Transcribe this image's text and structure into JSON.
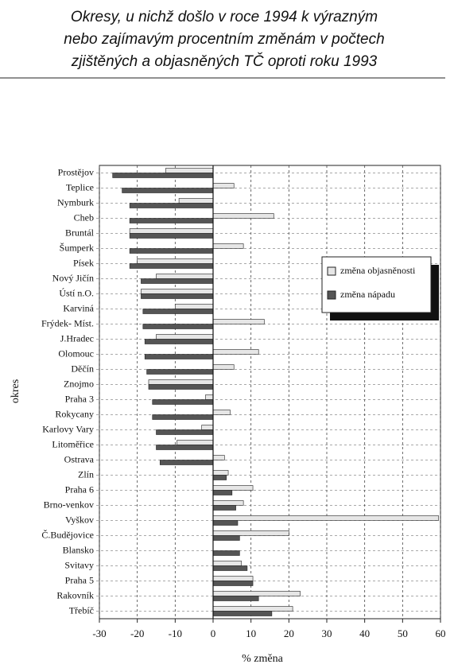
{
  "chart_data": {
    "type": "hbar",
    "title": [
      "Okresy, u nichž došlo v roce 1994 k výrazným",
      "nebo zajímavým procentním změnám v počtech",
      "zjištěných a objasněných TČ oproti roku 1993"
    ],
    "x_label": "% změna",
    "y_label": "okres",
    "categories": [
      "Prostějov",
      "Teplice",
      "Nymburk",
      "Cheb",
      "Bruntál",
      "Šumperk",
      "Písek",
      "Nový Jičín",
      "Ústí n.O.",
      "Karviná",
      "Frýdek- Míst.",
      "J.Hradec",
      "Olomouc",
      "Děčín",
      "Znojmo",
      "Praha 3",
      "Rokycany",
      "Karlovy Vary",
      "Litoměřice",
      "Ostrava",
      "Zlín",
      "Praha 6",
      "Brno-venkov",
      "Vyškov",
      "Č.Budějovice",
      "Blansko",
      "Svitavy",
      "Praha 5",
      "Rakovník",
      "Třebíč"
    ],
    "series": [
      {
        "name": "změna objasněnosti",
        "color": "#e6e6e6",
        "values": [
          -12.5,
          5.5,
          -9,
          16,
          -22,
          8,
          -20,
          -15,
          -19,
          -10,
          13.5,
          -15,
          12,
          5.5,
          -17,
          -2,
          4.5,
          -3,
          -9.5,
          3,
          4,
          10.5,
          8,
          59.5,
          20,
          0,
          7.5,
          10.5,
          23,
          21
        ]
      },
      {
        "name": "změna nápadu",
        "color": "#555555",
        "values": [
          -26.5,
          -24,
          -22,
          -22,
          -22,
          -22,
          -22,
          -19,
          -19,
          -18.5,
          -18.5,
          -18,
          -18,
          -17.5,
          -17,
          -16,
          -16,
          -15,
          -15,
          -14,
          3.5,
          5,
          6,
          6.5,
          7,
          7,
          9,
          10.5,
          12,
          15.5
        ]
      }
    ],
    "xlim": [
      -30,
      60
    ],
    "xticks": [
      -30,
      -20,
      -10,
      0,
      10,
      20,
      30,
      40,
      50,
      60
    ],
    "grid": true
  }
}
